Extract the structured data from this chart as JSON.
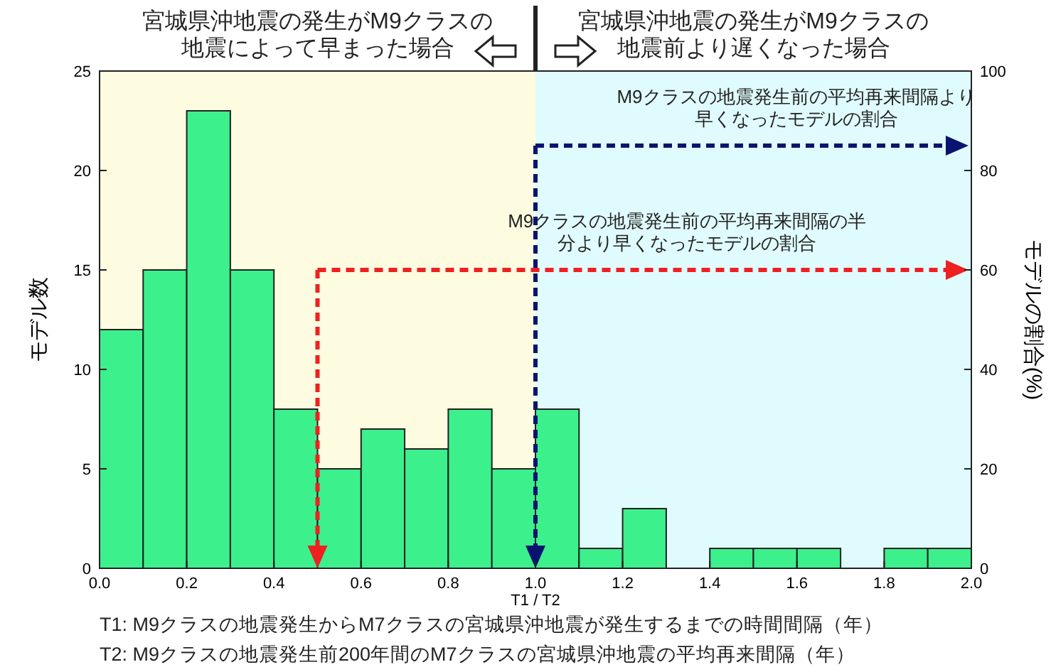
{
  "chart_data": {
    "type": "histogram",
    "bins": [
      0.0,
      0.1,
      0.2,
      0.3,
      0.4,
      0.5,
      0.6,
      0.7,
      0.8,
      0.9,
      1.0,
      1.1,
      1.2,
      1.3,
      1.4,
      1.5,
      1.6,
      1.7,
      1.8,
      1.9,
      2.0
    ],
    "values": [
      12,
      15,
      23,
      15,
      8,
      5,
      7,
      6,
      8,
      5,
      8,
      1,
      3,
      0,
      1,
      1,
      1,
      0,
      1,
      1
    ],
    "color": "#3cf08c",
    "xlim": [
      0,
      2
    ],
    "xticks": [
      {
        "value": 0,
        "label": "0.0"
      },
      {
        "value": 0.2,
        "label": "0.2"
      },
      {
        "value": 0.4,
        "label": "0.4"
      },
      {
        "value": 0.6,
        "label": "0.6"
      },
      {
        "value": 0.8,
        "label": "0.8"
      },
      {
        "value": 1,
        "label": "1.0"
      },
      {
        "value": 1.2,
        "label": "1.2"
      },
      {
        "value": 1.4,
        "label": "1.4"
      },
      {
        "value": 1.6,
        "label": "1.6"
      },
      {
        "value": 1.8,
        "label": "1.8"
      },
      {
        "value": 2,
        "label": "2.0"
      }
    ],
    "ylim": [
      0,
      25
    ],
    "yticks": [
      0,
      5,
      10,
      15,
      20,
      25
    ],
    "y2lim": [
      0,
      100
    ],
    "y2ticks": [
      0,
      20,
      40,
      60,
      80,
      100
    ],
    "xlabel": "T1 / T2",
    "ylabel": "モデル数",
    "y2label": "モデルの割合(%)",
    "grid": false,
    "bands": [
      {
        "axis": "x",
        "from": 0,
        "to": 1,
        "label": "宮城県沖地震の発生がM9クラスの地震によって早まった場合",
        "color": "#fdfbe0"
      },
      {
        "axis": "x",
        "from": 1,
        "to": 2,
        "label": "宮城県沖地震の発生がM9クラスの地震前より遅くなった場合",
        "color": "#e0fbfd"
      }
    ],
    "ref_lines": [
      {
        "axis": "x",
        "value": 1.0,
        "label": null,
        "color": "#0a1470",
        "line_style": "dashed"
      },
      {
        "axis": "x",
        "value": 0.5,
        "label": null,
        "color": "#ee2020",
        "line_style": "dashed"
      },
      {
        "axis": "y2",
        "value": 85,
        "label": "M9クラスの地震発生前の平均再来間隔より早くなったモデルの割合",
        "color": "#0a1470",
        "line_style": "dashed"
      },
      {
        "axis": "y2",
        "value": 60,
        "label": "M9クラスの地震発生前の平均再来間隔の半分より早くなったモデルの割合",
        "color": "#ee2020",
        "line_style": "dashed"
      }
    ],
    "annotations": [
      "T1: M9クラスの地震発生からM7クラスの宮城県沖地震が発生するまでの時間間隔（年）",
      "T2: M9クラスの地震発生前200年間のM7クラスの宮城県沖地震の平均再来間隔（年）"
    ]
  }
}
